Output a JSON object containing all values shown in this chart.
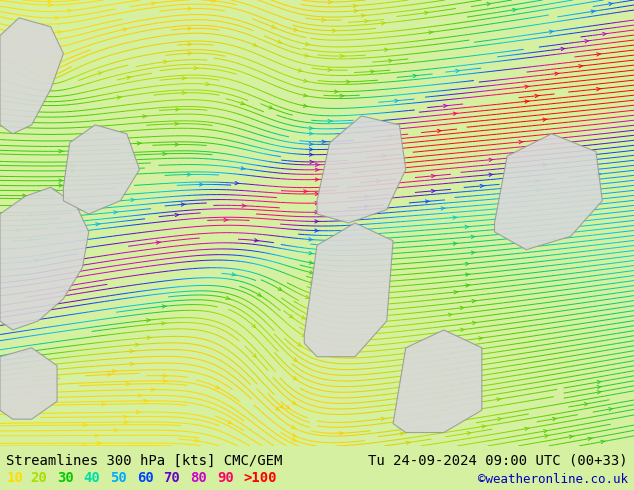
{
  "title_left": "Streamlines 300 hPa [kts] CMC/GEM",
  "title_right": "Tu 24-09-2024 09:00 UTC (00+33)",
  "credit": "©weatheronline.co.uk",
  "background_color": "#d4f0a0",
  "legend_values": [
    "10",
    "20",
    "30",
    "40",
    "50",
    "60",
    "70",
    "80",
    "90",
    ">100"
  ],
  "legend_colors": [
    "#ffdd00",
    "#aadd00",
    "#00cc00",
    "#00ddaa",
    "#00aaff",
    "#0044ff",
    "#6600cc",
    "#cc00cc",
    "#ff0066",
    "#ff0000"
  ],
  "title_fontsize": 10,
  "legend_fontsize": 10,
  "credit_fontsize": 9,
  "fig_width": 6.34,
  "fig_height": 4.9,
  "dpi": 100,
  "land_color": "#d8d8d8",
  "land_edge_color": "#999999",
  "sea_color": "#c8eeaa"
}
